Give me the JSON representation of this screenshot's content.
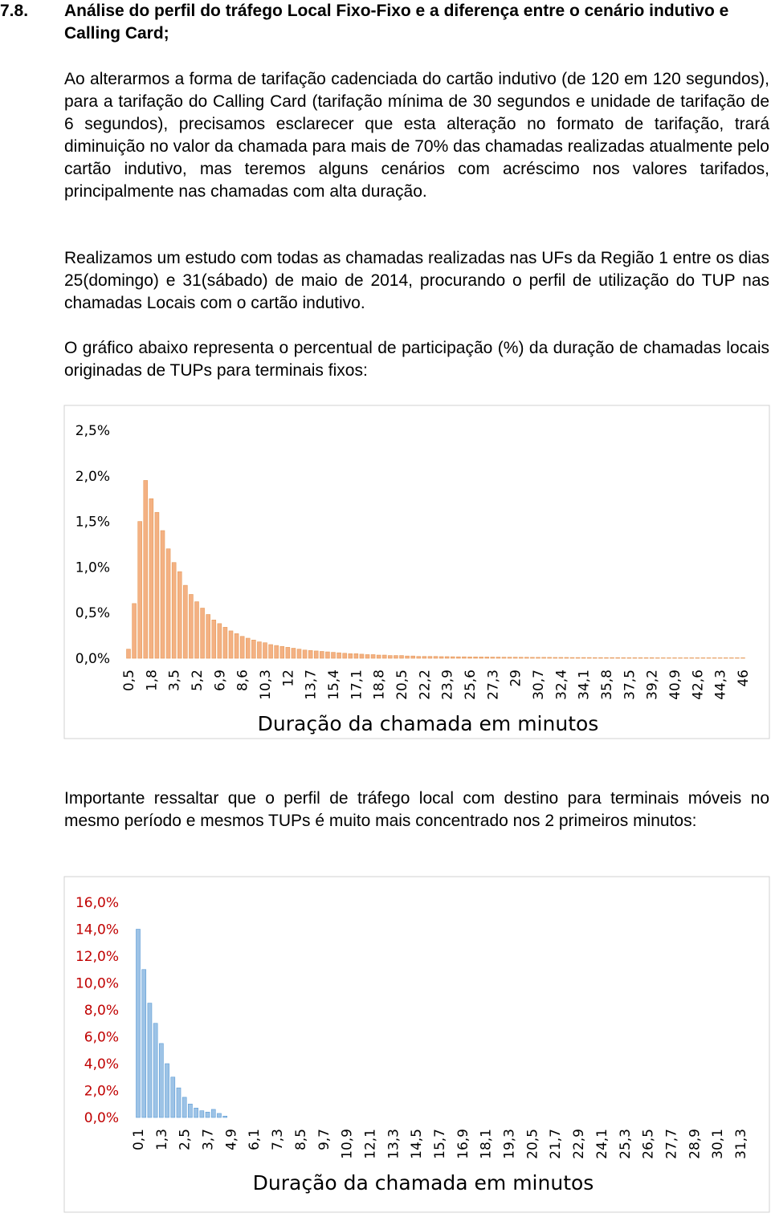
{
  "heading": {
    "number": "7.8.",
    "title": "Análise do perfil do tráfego Local Fixo-Fixo e a diferença entre o cenário indutivo e Calling Card;"
  },
  "paragraphs": [
    "Ao alterarmos a forma de tarifação cadenciada do cartão indutivo (de 120 em 120 segundos), para a tarifação do Calling Card (tarifação mínima de 30 segundos e unidade de tarifação de 6 segundos), precisamos esclarecer que esta alteração no formato de tarifação, trará diminuição no valor da chamada para mais de 70% das chamadas realizadas atualmente pelo cartão indutivo, mas teremos alguns cenários com acréscimo nos valores tarifados, principalmente nas chamadas com alta duração.",
    "Realizamos um estudo com todas as chamadas realizadas nas UFs da Região 1 entre os dias 25(domingo) e 31(sábado) de maio de 2014, procurando o perfil de utilização do TUP nas chamadas Locais com o cartão indutivo.",
    "O gráfico abaixo representa o percentual de participação (%) da duração de chamadas locais originadas de TUPs para terminais fixos:",
    "Importante ressaltar que o perfil de tráfego local com destino para terminais móveis no mesmo período e mesmos TUPs é muito mais concentrado nos 2 primeiros minutos:"
  ],
  "chart_data": [
    {
      "type": "bar",
      "x_label": "Duração da chamada em minutos",
      "color": "#f4b183",
      "tick_color": "#000000",
      "categories": [
        "0,5",
        null,
        null,
        null,
        "1,8",
        null,
        null,
        null,
        "3,5",
        null,
        null,
        null,
        "5,2",
        null,
        null,
        null,
        "6,9",
        null,
        null,
        null,
        "8,6",
        null,
        null,
        null,
        "10,3",
        null,
        null,
        null,
        "12",
        null,
        null,
        null,
        "13,7",
        null,
        null,
        null,
        "15,4",
        null,
        null,
        null,
        "17,1",
        null,
        null,
        null,
        "18,8",
        null,
        null,
        null,
        "20,5",
        null,
        null,
        null,
        "22,2",
        null,
        null,
        null,
        "23,9",
        null,
        null,
        null,
        "25,6",
        null,
        null,
        null,
        "27,3",
        null,
        null,
        null,
        "29",
        null,
        null,
        null,
        "30,7",
        null,
        null,
        null,
        "32,4",
        null,
        null,
        null,
        "34,1",
        null,
        null,
        null,
        "35,8",
        null,
        null,
        null,
        "37,5",
        null,
        null,
        null,
        "39,2",
        null,
        null,
        null,
        "40,9",
        null,
        null,
        null,
        "42,6",
        null,
        null,
        null,
        "44,3",
        null,
        null,
        null,
        "46"
      ],
      "values": [
        0.1,
        0.6,
        1.5,
        1.95,
        1.75,
        1.6,
        1.4,
        1.2,
        1.05,
        0.95,
        0.8,
        0.7,
        0.62,
        0.55,
        0.48,
        0.42,
        0.38,
        0.34,
        0.3,
        0.27,
        0.24,
        0.22,
        0.2,
        0.18,
        0.17,
        0.15,
        0.14,
        0.13,
        0.12,
        0.11,
        0.1,
        0.09,
        0.085,
        0.08,
        0.075,
        0.07,
        0.065,
        0.06,
        0.055,
        0.05,
        0.05,
        0.045,
        0.04,
        0.04,
        0.035,
        0.035,
        0.03,
        0.03,
        0.03,
        0.025,
        0.025,
        0.02,
        0.02,
        0.02,
        0.02,
        0.018,
        0.018,
        0.017,
        0.016,
        0.016,
        0.015,
        0.015,
        0.014,
        0.014,
        0.013,
        0.013,
        0.012,
        0.012,
        0.012,
        0.011,
        0.011,
        0.01,
        0.01,
        0.01,
        0.01,
        0.009,
        0.009,
        0.009,
        0.008,
        0.008,
        0.008,
        0.008,
        0.007,
        0.007,
        0.007,
        0.007,
        0.007,
        0.006,
        0.006,
        0.006,
        0.006,
        0.006,
        0.006,
        0.005,
        0.005,
        0.005,
        0.005,
        0.005,
        0.005,
        0.005,
        0.005,
        0.005,
        0.005,
        0.005,
        0.005,
        0.005,
        0.005,
        0.005,
        0.005
      ],
      "ylim": [
        0,
        2.5
      ],
      "yticks": [
        {
          "value": 0,
          "label": "0,0%"
        },
        {
          "value": 0.5,
          "label": "0,5%"
        },
        {
          "value": 1,
          "label": "1,0%"
        },
        {
          "value": 1.5,
          "label": "1,5%"
        },
        {
          "value": 2,
          "label": "2,0%"
        },
        {
          "value": 2.5,
          "label": "2,5%"
        }
      ]
    },
    {
      "type": "bar",
      "x_label": "Duração da chamada em minutos",
      "color": "#9dc3e6",
      "tick_color": "#c00000",
      "categories": [
        "0,1",
        null,
        null,
        null,
        "1,3",
        null,
        null,
        null,
        "2,5",
        null,
        null,
        null,
        "3,7",
        null,
        null,
        null,
        "4,9",
        null,
        null,
        null,
        "6,1",
        null,
        null,
        null,
        "7,3",
        null,
        null,
        null,
        "8,5",
        null,
        null,
        null,
        "9,7",
        null,
        null,
        null,
        "10,9",
        null,
        null,
        null,
        "12,1",
        null,
        null,
        null,
        "13,3",
        null,
        null,
        null,
        "14,5",
        null,
        null,
        null,
        "15,7",
        null,
        null,
        null,
        "16,9",
        null,
        null,
        null,
        "18,1",
        null,
        null,
        null,
        "19,3",
        null,
        null,
        null,
        "20,5",
        null,
        null,
        null,
        "21,7",
        null,
        null,
        null,
        "22,9",
        null,
        null,
        null,
        "24,1",
        null,
        null,
        null,
        "25,3",
        null,
        null,
        null,
        "26,5",
        null,
        null,
        null,
        "27,7",
        null,
        null,
        null,
        "28,9",
        null,
        null,
        null,
        "30,1",
        null,
        null,
        null,
        "31,3"
      ],
      "values": [
        14.0,
        11.0,
        8.5,
        7.0,
        5.5,
        4.0,
        3.0,
        2.2,
        1.5,
        1.0,
        0.7,
        0.5,
        0.4,
        0.6,
        0.3,
        0.1,
        0,
        0,
        0,
        0,
        0,
        0,
        0,
        0,
        0,
        0,
        0,
        0,
        0,
        0,
        0,
        0,
        0,
        0,
        0,
        0,
        0,
        0,
        0,
        0,
        0,
        0,
        0,
        0,
        0,
        0,
        0,
        0,
        0,
        0,
        0,
        0,
        0,
        0,
        0,
        0,
        0,
        0,
        0,
        0,
        0,
        0,
        0,
        0,
        0,
        0,
        0,
        0,
        0,
        0,
        0,
        0,
        0,
        0,
        0,
        0,
        0,
        0,
        0,
        0,
        0,
        0,
        0,
        0,
        0,
        0,
        0,
        0,
        0,
        0,
        0,
        0,
        0,
        0,
        0,
        0,
        0,
        0,
        0,
        0,
        0,
        0,
        0,
        0,
        0
      ],
      "ylim": [
        0,
        16
      ],
      "yticks": [
        {
          "value": 0,
          "label": "0,0%"
        },
        {
          "value": 2,
          "label": "2,0%"
        },
        {
          "value": 4,
          "label": "4,0%"
        },
        {
          "value": 6,
          "label": "6,0%"
        },
        {
          "value": 8,
          "label": "8,0%"
        },
        {
          "value": 10,
          "label": "10,0%"
        },
        {
          "value": 12,
          "label": "12,0%"
        },
        {
          "value": 14,
          "label": "14,0%"
        },
        {
          "value": 16,
          "label": "16,0%"
        }
      ]
    }
  ]
}
